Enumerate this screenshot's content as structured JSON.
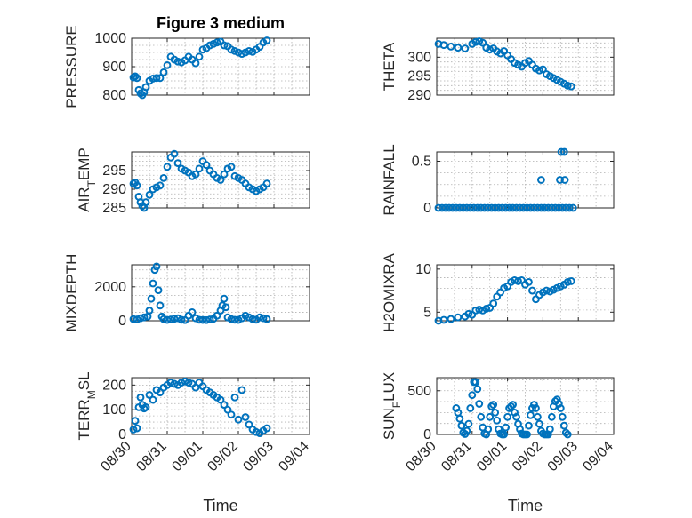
{
  "chart_data": [
    {
      "type": "scatter",
      "title": "Figure 3 medium",
      "ylabel": "PRESSURE",
      "ylim": [
        800,
        1000
      ],
      "yticks": [
        800,
        900,
        1000
      ],
      "xlim": [
        "08/30",
        "09/04"
      ],
      "xticks": [],
      "grid": true,
      "color": "#0072BD",
      "x": [
        0.05,
        0.1,
        0.15,
        0.2,
        0.25,
        0.3,
        0.35,
        0.4,
        0.5,
        0.6,
        0.7,
        0.8,
        0.9,
        1.0,
        1.1,
        1.2,
        1.3,
        1.4,
        1.5,
        1.6,
        1.7,
        1.8,
        1.9,
        2.0,
        2.1,
        2.2,
        2.3,
        2.4,
        2.5,
        2.6,
        2.7,
        2.8,
        2.9,
        3.0,
        3.1,
        3.2,
        3.3,
        3.4,
        3.5,
        3.6,
        3.7,
        3.8
      ],
      "y": [
        862,
        866,
        860,
        818,
        806,
        800,
        810,
        828,
        850,
        858,
        860,
        860,
        880,
        905,
        935,
        925,
        918,
        915,
        922,
        935,
        925,
        912,
        935,
        960,
        965,
        975,
        980,
        985,
        988,
        975,
        972,
        960,
        955,
        950,
        945,
        950,
        955,
        952,
        960,
        970,
        985,
        992
      ]
    },
    {
      "type": "scatter",
      "ylabel": "THETA",
      "ylim": [
        290,
        305
      ],
      "yticks": [
        290,
        295,
        300
      ],
      "xlim": [
        "08/30",
        "09/04"
      ],
      "xticks": [],
      "grid": true,
      "color": "#0072BD",
      "x": [
        0.05,
        0.2,
        0.4,
        0.6,
        0.8,
        1.0,
        1.1,
        1.2,
        1.3,
        1.4,
        1.5,
        1.6,
        1.7,
        1.8,
        1.9,
        2.0,
        2.1,
        2.2,
        2.3,
        2.4,
        2.5,
        2.6,
        2.7,
        2.8,
        2.9,
        3.0,
        3.1,
        3.2,
        3.3,
        3.4,
        3.5,
        3.6,
        3.7,
        3.8
      ],
      "y": [
        303.5,
        303.2,
        302.8,
        302.5,
        302.3,
        303.5,
        304.0,
        304.2,
        303.8,
        302.5,
        302.0,
        302.3,
        301.5,
        301.0,
        301.6,
        300.5,
        299.5,
        298.5,
        298.0,
        297.5,
        298.5,
        299.0,
        298.0,
        297.0,
        296.5,
        296.8,
        295.5,
        295.0,
        294.5,
        294.0,
        293.5,
        293.0,
        292.5,
        292.3
      ]
    },
    {
      "type": "scatter",
      "ylabel": "AIR_TEMP",
      "ylim": [
        285,
        300
      ],
      "yticks": [
        285,
        290,
        295
      ],
      "xlim": [
        "08/30",
        "09/04"
      ],
      "xticks": [],
      "grid": true,
      "color": "#0072BD",
      "x": [
        0.05,
        0.1,
        0.15,
        0.2,
        0.25,
        0.3,
        0.35,
        0.4,
        0.5,
        0.6,
        0.7,
        0.8,
        0.9,
        1.0,
        1.1,
        1.2,
        1.3,
        1.4,
        1.5,
        1.6,
        1.7,
        1.8,
        1.9,
        2.0,
        2.1,
        2.2,
        2.3,
        2.4,
        2.5,
        2.6,
        2.7,
        2.8,
        2.9,
        3.0,
        3.1,
        3.2,
        3.3,
        3.4,
        3.5,
        3.6,
        3.7,
        3.8
      ],
      "y": [
        291.5,
        291.8,
        291.0,
        288.0,
        286.5,
        285.5,
        285.0,
        286.5,
        288.5,
        290.0,
        290.5,
        291.0,
        293.0,
        296.0,
        298.5,
        299.5,
        297.0,
        295.5,
        295.0,
        294.5,
        293.5,
        294.0,
        295.5,
        297.5,
        296.5,
        295.0,
        294.0,
        293.0,
        292.5,
        294.0,
        295.5,
        296.0,
        293.5,
        293.0,
        292.5,
        291.5,
        290.5,
        290.0,
        289.5,
        290.0,
        290.5,
        291.5
      ]
    },
    {
      "type": "scatter",
      "ylabel": "RAINFALL",
      "ylim": [
        0,
        0.6
      ],
      "yticks": [
        0,
        0.5
      ],
      "xlim": [
        "08/30",
        "09/04"
      ],
      "xticks": [],
      "grid": true,
      "color": "#0072BD",
      "x": [
        0.05,
        0.15,
        0.25,
        0.35,
        0.45,
        0.55,
        0.65,
        0.75,
        0.85,
        0.95,
        1.05,
        1.15,
        1.25,
        1.35,
        1.45,
        1.55,
        1.65,
        1.75,
        1.85,
        1.95,
        2.05,
        2.15,
        2.25,
        2.35,
        2.45,
        2.55,
        2.65,
        2.75,
        2.85,
        2.95,
        3.05,
        3.15,
        3.25,
        3.35,
        3.45,
        3.55,
        3.65,
        3.75,
        3.85,
        2.95,
        3.48,
        3.62,
        3.52,
        3.6
      ],
      "y": [
        0,
        0,
        0,
        0,
        0,
        0,
        0,
        0,
        0,
        0,
        0,
        0,
        0,
        0,
        0,
        0,
        0,
        0,
        0,
        0,
        0,
        0,
        0,
        0,
        0,
        0,
        0,
        0,
        0,
        0,
        0,
        0,
        0,
        0,
        0,
        0,
        0,
        0,
        0,
        0.3,
        0.3,
        0.3,
        0.6,
        0.6
      ]
    },
    {
      "type": "scatter",
      "ylabel": "MIXDEPTH",
      "ylim": [
        0,
        3300
      ],
      "yticks": [
        0,
        2000
      ],
      "xlim": [
        "08/30",
        "09/04"
      ],
      "xticks": [],
      "grid": true,
      "color": "#0072BD",
      "x": [
        0.05,
        0.15,
        0.25,
        0.35,
        0.45,
        0.5,
        0.55,
        0.6,
        0.65,
        0.7,
        0.75,
        0.8,
        0.85,
        0.9,
        1.0,
        1.1,
        1.2,
        1.3,
        1.4,
        1.5,
        1.6,
        1.7,
        1.8,
        1.9,
        2.0,
        2.1,
        2.2,
        2.3,
        2.4,
        2.5,
        2.55,
        2.6,
        2.65,
        2.7,
        2.8,
        2.9,
        3.0,
        3.1,
        3.2,
        3.3,
        3.4,
        3.5,
        3.6,
        3.7,
        3.8
      ],
      "y": [
        100,
        80,
        150,
        200,
        250,
        600,
        1300,
        2200,
        3000,
        3200,
        1800,
        900,
        250,
        100,
        50,
        80,
        120,
        150,
        60,
        40,
        300,
        500,
        150,
        60,
        50,
        40,
        80,
        120,
        300,
        600,
        900,
        1300,
        800,
        200,
        100,
        60,
        50,
        150,
        300,
        200,
        100,
        60,
        200,
        150,
        100
      ]
    },
    {
      "type": "scatter",
      "ylabel": "H2OMIXRA",
      "ylim": [
        4,
        10.5
      ],
      "yticks": [
        5,
        10
      ],
      "xlim": [
        "08/30",
        "09/04"
      ],
      "xticks": [],
      "grid": true,
      "color": "#0072BD",
      "x": [
        0.05,
        0.2,
        0.4,
        0.6,
        0.8,
        0.9,
        1.0,
        1.1,
        1.2,
        1.3,
        1.4,
        1.5,
        1.6,
        1.7,
        1.8,
        1.9,
        2.0,
        2.1,
        2.2,
        2.3,
        2.4,
        2.5,
        2.6,
        2.7,
        2.8,
        2.9,
        3.0,
        3.1,
        3.2,
        3.3,
        3.4,
        3.5,
        3.6,
        3.7,
        3.8
      ],
      "y": [
        4.0,
        4.1,
        4.2,
        4.4,
        4.5,
        4.8,
        4.7,
        5.2,
        5.3,
        5.2,
        5.4,
        5.5,
        6.0,
        6.8,
        7.3,
        7.8,
        8.0,
        8.5,
        8.7,
        8.6,
        8.7,
        8.2,
        8.5,
        7.5,
        6.5,
        7.0,
        7.3,
        7.5,
        7.4,
        7.6,
        7.8,
        8.0,
        8.2,
        8.5,
        8.6
      ]
    },
    {
      "type": "scatter",
      "ylabel": "TERR_MSL",
      "ylim": [
        0,
        230
      ],
      "yticks": [
        0,
        100,
        200
      ],
      "xlim": [
        "08/30",
        "09/04"
      ],
      "xticks": [
        "08/30",
        "08/31",
        "09/01",
        "09/02",
        "09/03",
        "09/04"
      ],
      "xlabel": "Time",
      "grid": true,
      "color": "#0072BD",
      "x": [
        0.05,
        0.1,
        0.15,
        0.2,
        0.25,
        0.3,
        0.35,
        0.4,
        0.5,
        0.6,
        0.7,
        0.8,
        0.9,
        1.0,
        1.1,
        1.2,
        1.3,
        1.4,
        1.5,
        1.6,
        1.7,
        1.8,
        1.9,
        2.0,
        2.1,
        2.2,
        2.3,
        2.4,
        2.5,
        2.6,
        2.7,
        2.8,
        2.9,
        3.0,
        3.1,
        3.2,
        3.3,
        3.4,
        3.5,
        3.6,
        3.7,
        3.8
      ],
      "y": [
        20,
        55,
        25,
        110,
        150,
        120,
        105,
        110,
        160,
        140,
        180,
        170,
        190,
        200,
        210,
        205,
        200,
        210,
        215,
        210,
        205,
        190,
        210,
        195,
        180,
        170,
        160,
        150,
        140,
        120,
        100,
        80,
        150,
        60,
        180,
        70,
        40,
        20,
        10,
        5,
        15,
        25
      ]
    },
    {
      "type": "scatter",
      "ylabel": "SUN_FLUX",
      "ylim": [
        0,
        650
      ],
      "yticks": [
        0,
        500
      ],
      "xlim": [
        "08/30",
        "09/04"
      ],
      "xticks": [
        "08/30",
        "08/31",
        "09/01",
        "09/02",
        "09/03",
        "09/04"
      ],
      "xlabel": "Time",
      "grid": true,
      "color": "#0072BD",
      "x": [
        0.55,
        0.6,
        0.65,
        0.7,
        0.75,
        0.8,
        0.85,
        0.9,
        0.95,
        1.0,
        1.05,
        1.1,
        1.15,
        1.2,
        1.25,
        1.3,
        1.35,
        1.4,
        1.45,
        1.5,
        1.55,
        1.6,
        1.65,
        1.7,
        1.75,
        1.8,
        1.85,
        1.9,
        1.95,
        2.0,
        2.05,
        2.1,
        2.15,
        2.2,
        2.25,
        2.3,
        2.35,
        2.4,
        2.45,
        2.5,
        2.55,
        2.6,
        2.65,
        2.7,
        2.75,
        2.8,
        2.85,
        2.9,
        2.95,
        3.0,
        3.05,
        3.1,
        3.15,
        3.2,
        3.25,
        3.3,
        3.35,
        3.4,
        3.45,
        3.5,
        3.55,
        3.6,
        3.65,
        3.7
      ],
      "y": [
        300,
        250,
        180,
        100,
        20,
        5,
        40,
        120,
        300,
        450,
        600,
        600,
        520,
        350,
        200,
        80,
        10,
        0,
        60,
        200,
        320,
        340,
        250,
        160,
        60,
        10,
        0,
        0,
        80,
        200,
        300,
        320,
        340,
        250,
        200,
        120,
        60,
        10,
        0,
        0,
        0,
        100,
        220,
        300,
        340,
        300,
        200,
        120,
        40,
        10,
        0,
        0,
        0,
        60,
        200,
        320,
        380,
        400,
        350,
        300,
        200,
        100,
        20,
        0
      ]
    }
  ]
}
